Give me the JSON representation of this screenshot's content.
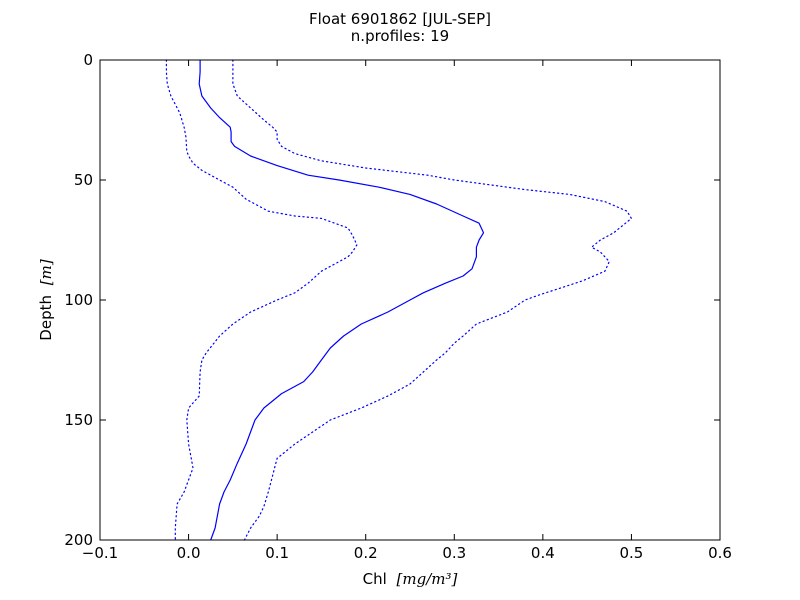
{
  "chart_data": {
    "type": "line",
    "title": "Float 6901862 [JUL-SEP]",
    "subtitle": "n.profiles: 19",
    "xlabel": "Chl",
    "xlabel_unit": "[mg/m³]",
    "ylabel": "Depth",
    "ylabel_unit": "[m]",
    "xlim": [
      -0.1,
      0.6
    ],
    "ylim": [
      200,
      0
    ],
    "y_inverted": true,
    "grid": false,
    "xticks": [
      -0.1,
      0.0,
      0.1,
      0.2,
      0.3,
      0.4,
      0.5,
      0.6
    ],
    "xtick_labels": [
      "−0.1",
      "0.0",
      "0.1",
      "0.2",
      "0.3",
      "0.4",
      "0.5",
      "0.6"
    ],
    "yticks": [
      0,
      50,
      100,
      150,
      200
    ],
    "ytick_labels": [
      "0",
      "50",
      "100",
      "150",
      "200"
    ],
    "colors": {
      "series": "#0000ff",
      "axes": "#000000"
    },
    "series": [
      {
        "style": "dotted",
        "points": [
          [
            -0.025,
            0
          ],
          [
            -0.025,
            5
          ],
          [
            -0.024,
            10
          ],
          [
            -0.02,
            15
          ],
          [
            -0.01,
            22
          ],
          [
            -0.005,
            28
          ],
          [
            -0.003,
            32
          ],
          [
            -0.002,
            38
          ],
          [
            0.0,
            40
          ],
          [
            0.005,
            43
          ],
          [
            0.015,
            46
          ],
          [
            0.035,
            50
          ],
          [
            0.05,
            53
          ],
          [
            0.065,
            58
          ],
          [
            0.09,
            63
          ],
          [
            0.12,
            65
          ],
          [
            0.15,
            66
          ],
          [
            0.18,
            70
          ],
          [
            0.185,
            73
          ],
          [
            0.19,
            77
          ],
          [
            0.185,
            80
          ],
          [
            0.18,
            82
          ],
          [
            0.165,
            85
          ],
          [
            0.15,
            88
          ],
          [
            0.135,
            93
          ],
          [
            0.12,
            97
          ],
          [
            0.1,
            100
          ],
          [
            0.07,
            105
          ],
          [
            0.05,
            110
          ],
          [
            0.035,
            115
          ],
          [
            0.02,
            122
          ],
          [
            0.015,
            125
          ],
          [
            0.013,
            130
          ],
          [
            0.012,
            140
          ],
          [
            0.0,
            145
          ],
          [
            -0.002,
            150
          ],
          [
            0.0,
            160
          ],
          [
            0.005,
            170
          ],
          [
            -0.005,
            180
          ],
          [
            -0.013,
            185
          ],
          [
            -0.015,
            195
          ],
          [
            -0.015,
            200
          ]
        ]
      },
      {
        "style": "solid",
        "points": [
          [
            0.013,
            0
          ],
          [
            0.013,
            5
          ],
          [
            0.012,
            10
          ],
          [
            0.015,
            15
          ],
          [
            0.025,
            20
          ],
          [
            0.035,
            24
          ],
          [
            0.047,
            28
          ],
          [
            0.048,
            30
          ],
          [
            0.048,
            34
          ],
          [
            0.052,
            36
          ],
          [
            0.07,
            40
          ],
          [
            0.1,
            44
          ],
          [
            0.135,
            48
          ],
          [
            0.17,
            50
          ],
          [
            0.215,
            53
          ],
          [
            0.25,
            56
          ],
          [
            0.28,
            60
          ],
          [
            0.31,
            65
          ],
          [
            0.328,
            68
          ],
          [
            0.333,
            72
          ],
          [
            0.328,
            75
          ],
          [
            0.325,
            78
          ],
          [
            0.325,
            82
          ],
          [
            0.32,
            87
          ],
          [
            0.31,
            90
          ],
          [
            0.29,
            93
          ],
          [
            0.265,
            97
          ],
          [
            0.25,
            100
          ],
          [
            0.225,
            105
          ],
          [
            0.195,
            110
          ],
          [
            0.175,
            115
          ],
          [
            0.16,
            120
          ],
          [
            0.15,
            125
          ],
          [
            0.14,
            130
          ],
          [
            0.13,
            134
          ],
          [
            0.105,
            139
          ],
          [
            0.085,
            145
          ],
          [
            0.075,
            150
          ],
          [
            0.065,
            160
          ],
          [
            0.055,
            168
          ],
          [
            0.047,
            175
          ],
          [
            0.04,
            180
          ],
          [
            0.035,
            185
          ],
          [
            0.03,
            195
          ],
          [
            0.025,
            200
          ]
        ]
      },
      {
        "style": "dotted",
        "points": [
          [
            0.05,
            0
          ],
          [
            0.05,
            5
          ],
          [
            0.05,
            10
          ],
          [
            0.055,
            15
          ],
          [
            0.07,
            20
          ],
          [
            0.085,
            25
          ],
          [
            0.095,
            28
          ],
          [
            0.1,
            30
          ],
          [
            0.1,
            33
          ],
          [
            0.105,
            36
          ],
          [
            0.12,
            39
          ],
          [
            0.15,
            42
          ],
          [
            0.2,
            45
          ],
          [
            0.27,
            48
          ],
          [
            0.3,
            50
          ],
          [
            0.34,
            52
          ],
          [
            0.38,
            54
          ],
          [
            0.43,
            56
          ],
          [
            0.47,
            59
          ],
          [
            0.495,
            63
          ],
          [
            0.5,
            66
          ],
          [
            0.48,
            72
          ],
          [
            0.465,
            75
          ],
          [
            0.455,
            78
          ],
          [
            0.465,
            80
          ],
          [
            0.475,
            84
          ],
          [
            0.47,
            88
          ],
          [
            0.445,
            92
          ],
          [
            0.42,
            95
          ],
          [
            0.395,
            98
          ],
          [
            0.38,
            100
          ],
          [
            0.36,
            105
          ],
          [
            0.325,
            110
          ],
          [
            0.31,
            115
          ],
          [
            0.3,
            118
          ],
          [
            0.29,
            122
          ],
          [
            0.28,
            125
          ],
          [
            0.265,
            130
          ],
          [
            0.25,
            135
          ],
          [
            0.225,
            140
          ],
          [
            0.195,
            145
          ],
          [
            0.16,
            150
          ],
          [
            0.14,
            155
          ],
          [
            0.12,
            160
          ],
          [
            0.1,
            166
          ],
          [
            0.09,
            180
          ],
          [
            0.085,
            186
          ],
          [
            0.08,
            190
          ],
          [
            0.07,
            195
          ],
          [
            0.063,
            200
          ]
        ]
      }
    ]
  }
}
